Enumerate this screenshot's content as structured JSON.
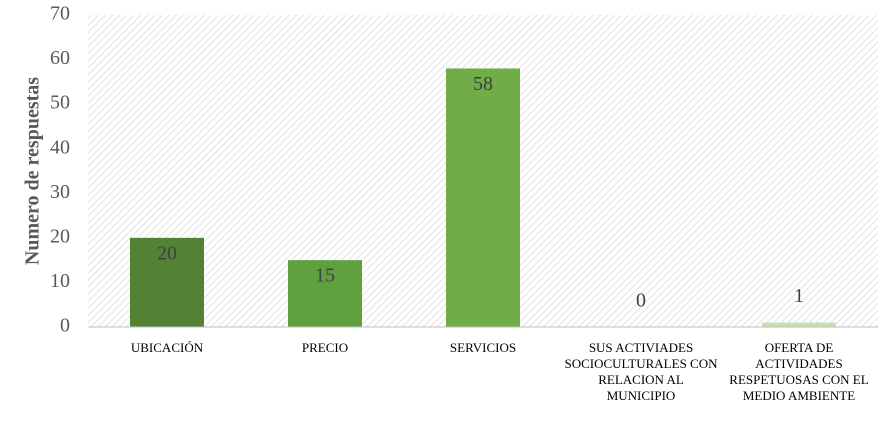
{
  "chart_data": {
    "type": "bar",
    "y_axis_label": "Numero de respuestas",
    "categories": [
      "UBICACIÓN",
      "PRECIO",
      "SERVICIOS",
      "SUS ACTIVIADES SOCIOCULTURALES CON RELACION AL MUNICIPIO",
      "OFERTA DE ACTIVIDADES RESPETUOSAS CON EL MEDIO AMBIENTE"
    ],
    "values": [
      20,
      15,
      58,
      0,
      1
    ],
    "colors": [
      "#548235",
      "#61a03f",
      "#70ad47",
      "#a9d18e",
      "#c5e0b4"
    ],
    "ylim": [
      0,
      70
    ],
    "yticks": [
      0,
      10,
      20,
      30,
      40,
      50,
      60,
      70
    ],
    "grid": false,
    "background_hatch": true
  }
}
